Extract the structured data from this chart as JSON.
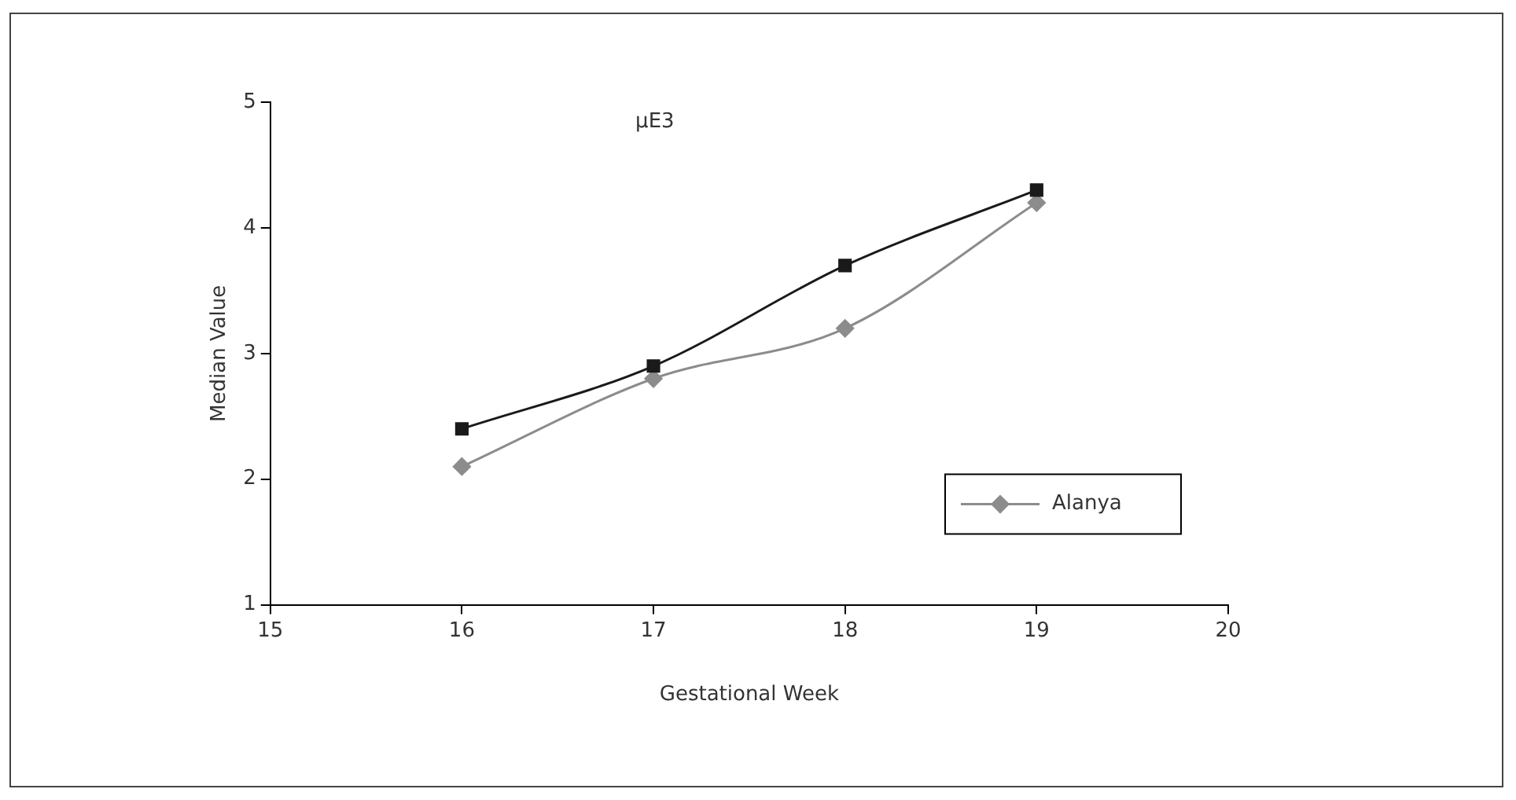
{
  "chart_data": {
    "type": "line",
    "title": "μE3",
    "xlabel": "Gestational Week",
    "ylabel": "Median Value",
    "x": [
      16,
      17,
      18,
      19
    ],
    "series": [
      {
        "color": "#1a1a1a",
        "marker": "square",
        "values": [
          2.4,
          2.9,
          3.7,
          4.3
        ]
      },
      {
        "name": "Alanya",
        "color": "#8c8c8c",
        "marker": "diamond",
        "values": [
          2.1,
          2.8,
          3.2,
          4.2
        ]
      }
    ],
    "xlim": [
      15,
      20
    ],
    "xticks": [
      15,
      16,
      17,
      18,
      19,
      20
    ],
    "ylim": [
      1,
      5
    ],
    "yticks": [
      1,
      2,
      3,
      4,
      5
    ],
    "grid": false,
    "legend": "bottom right"
  }
}
